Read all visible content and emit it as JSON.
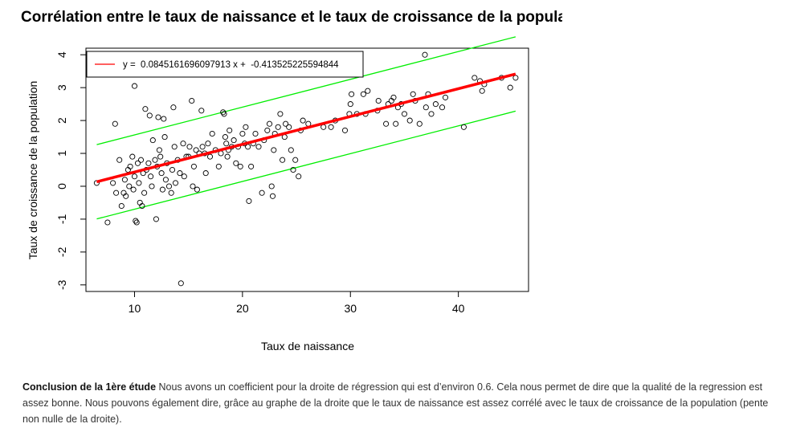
{
  "chart_data": {
    "type": "scatter",
    "title": "Corrélation entre le taux de naissance et le taux de croissance de la popula",
    "xlabel": "Taux de naissance",
    "ylabel": "Taux de croissance de la population",
    "xlim": [
      5.5,
      46.5
    ],
    "ylim": [
      -3.2,
      4.2
    ],
    "x_ticks": [
      "10",
      "20",
      "30",
      "40"
    ],
    "y_ticks": [
      "-3",
      "-2",
      "-1",
      "0",
      "1",
      "2",
      "3",
      "4"
    ],
    "legend": {
      "label": "y =  0.0845161696097913 x +  -0.413525225594844",
      "position": "top-left"
    },
    "regression": {
      "slope": 0.0845161696097913,
      "intercept": -0.413525225594844,
      "color": "#ff0000"
    },
    "bands": {
      "offset": 1.13,
      "color": "#00ee00"
    },
    "points": [
      [
        6.5,
        0.1
      ],
      [
        7.5,
        -1.1
      ],
      [
        8.0,
        0.1
      ],
      [
        8.2,
        1.9
      ],
      [
        8.3,
        -0.2
      ],
      [
        8.6,
        0.8
      ],
      [
        8.8,
        -0.6
      ],
      [
        9.0,
        -0.2
      ],
      [
        9.1,
        0.2
      ],
      [
        9.2,
        -0.3
      ],
      [
        9.4,
        0.5
      ],
      [
        9.5,
        0.0
      ],
      [
        9.6,
        0.6
      ],
      [
        9.8,
        0.9
      ],
      [
        9.9,
        -0.1
      ],
      [
        10.0,
        3.05
      ],
      [
        10.0,
        0.3
      ],
      [
        10.1,
        -1.05
      ],
      [
        10.2,
        -1.1
      ],
      [
        10.3,
        0.7
      ],
      [
        10.4,
        0.1
      ],
      [
        10.5,
        -0.5
      ],
      [
        10.6,
        0.8
      ],
      [
        10.7,
        -0.6
      ],
      [
        10.8,
        0.4
      ],
      [
        10.9,
        -0.2
      ],
      [
        11.0,
        2.35
      ],
      [
        11.1,
        0.5
      ],
      [
        11.3,
        0.7
      ],
      [
        11.4,
        2.15
      ],
      [
        11.5,
        0.3
      ],
      [
        11.6,
        0.0
      ],
      [
        11.7,
        1.4
      ],
      [
        11.9,
        0.8
      ],
      [
        12.0,
        -1.0
      ],
      [
        12.1,
        0.6
      ],
      [
        12.2,
        2.1
      ],
      [
        12.3,
        1.1
      ],
      [
        12.4,
        0.9
      ],
      [
        12.5,
        0.4
      ],
      [
        12.6,
        -0.1
      ],
      [
        12.7,
        2.05
      ],
      [
        12.8,
        1.5
      ],
      [
        12.9,
        0.2
      ],
      [
        13.0,
        0.7
      ],
      [
        13.2,
        0.0
      ],
      [
        13.4,
        -0.2
      ],
      [
        13.5,
        0.5
      ],
      [
        13.6,
        2.4
      ],
      [
        13.7,
        1.2
      ],
      [
        13.8,
        0.1
      ],
      [
        14.0,
        0.8
      ],
      [
        14.2,
        0.4
      ],
      [
        14.3,
        -2.95
      ],
      [
        14.5,
        1.3
      ],
      [
        14.6,
        0.3
      ],
      [
        14.8,
        0.9
      ],
      [
        15.0,
        0.9
      ],
      [
        15.1,
        1.2
      ],
      [
        15.3,
        2.6
      ],
      [
        15.4,
        0.0
      ],
      [
        15.5,
        0.6
      ],
      [
        15.7,
        1.1
      ],
      [
        15.8,
        -0.1
      ],
      [
        16.0,
        1.0
      ],
      [
        16.2,
        2.3
      ],
      [
        16.3,
        1.2
      ],
      [
        16.5,
        1.0
      ],
      [
        16.6,
        0.4
      ],
      [
        16.8,
        1.3
      ],
      [
        17.0,
        0.9
      ],
      [
        17.2,
        1.6
      ],
      [
        17.5,
        1.1
      ],
      [
        17.8,
        0.6
      ],
      [
        18.0,
        1.0
      ],
      [
        18.2,
        2.25
      ],
      [
        18.3,
        2.2
      ],
      [
        18.4,
        1.5
      ],
      [
        18.5,
        1.3
      ],
      [
        18.6,
        0.9
      ],
      [
        18.7,
        1.1
      ],
      [
        18.8,
        1.7
      ],
      [
        19.0,
        1.2
      ],
      [
        19.2,
        1.4
      ],
      [
        19.4,
        0.7
      ],
      [
        19.6,
        1.2
      ],
      [
        19.8,
        0.6
      ],
      [
        20.0,
        1.6
      ],
      [
        20.2,
        1.3
      ],
      [
        20.3,
        1.8
      ],
      [
        20.5,
        1.2
      ],
      [
        20.6,
        -0.45
      ],
      [
        20.8,
        0.6
      ],
      [
        21.0,
        1.3
      ],
      [
        21.2,
        1.6
      ],
      [
        21.5,
        1.2
      ],
      [
        21.8,
        -0.2
      ],
      [
        22.0,
        1.4
      ],
      [
        22.3,
        1.7
      ],
      [
        22.5,
        1.9
      ],
      [
        22.7,
        0.0
      ],
      [
        22.8,
        -0.3
      ],
      [
        22.9,
        1.1
      ],
      [
        23.0,
        1.6
      ],
      [
        23.3,
        1.8
      ],
      [
        23.5,
        2.2
      ],
      [
        23.7,
        0.8
      ],
      [
        23.9,
        1.5
      ],
      [
        24.0,
        1.9
      ],
      [
        24.3,
        1.8
      ],
      [
        24.5,
        1.1
      ],
      [
        24.7,
        0.5
      ],
      [
        24.9,
        0.8
      ],
      [
        25.2,
        0.3
      ],
      [
        25.4,
        1.7
      ],
      [
        25.6,
        2.0
      ],
      [
        26.1,
        1.9
      ],
      [
        27.5,
        1.8
      ],
      [
        28.2,
        1.8
      ],
      [
        28.6,
        2.0
      ],
      [
        29.5,
        1.7
      ],
      [
        29.9,
        2.2
      ],
      [
        30.0,
        2.5
      ],
      [
        30.1,
        2.8
      ],
      [
        30.6,
        2.2
      ],
      [
        31.2,
        2.8
      ],
      [
        31.4,
        2.2
      ],
      [
        31.6,
        2.9
      ],
      [
        32.5,
        2.3
      ],
      [
        32.6,
        2.6
      ],
      [
        33.3,
        1.9
      ],
      [
        33.5,
        2.5
      ],
      [
        33.8,
        2.6
      ],
      [
        34.0,
        2.7
      ],
      [
        34.2,
        1.9
      ],
      [
        34.4,
        2.4
      ],
      [
        34.7,
        2.5
      ],
      [
        35.0,
        2.2
      ],
      [
        35.5,
        2.0
      ],
      [
        35.8,
        2.8
      ],
      [
        36.0,
        2.6
      ],
      [
        36.4,
        1.9
      ],
      [
        36.9,
        4.0
      ],
      [
        37.0,
        2.4
      ],
      [
        37.2,
        2.8
      ],
      [
        37.5,
        2.2
      ],
      [
        37.9,
        2.5
      ],
      [
        38.5,
        2.4
      ],
      [
        38.8,
        2.7
      ],
      [
        40.5,
        1.8
      ],
      [
        41.5,
        3.3
      ],
      [
        42.0,
        3.2
      ],
      [
        42.2,
        2.9
      ],
      [
        42.4,
        3.1
      ],
      [
        44.0,
        3.3
      ],
      [
        44.8,
        3.0
      ],
      [
        45.3,
        3.3
      ]
    ]
  },
  "conclusion": {
    "heading": "Conclusion de la 1ère étude",
    "text": " Nous avons un coefficient pour la droite de régression qui est d’environ 0.6. Cela nous permet de dire que la qualité de la regression est assez bonne. Nous pouvons également dire, grâce au graphe de la droite que le taux de naissance est assez corrélé avec le taux de croissance de la population (pente non nulle de la droite)."
  }
}
